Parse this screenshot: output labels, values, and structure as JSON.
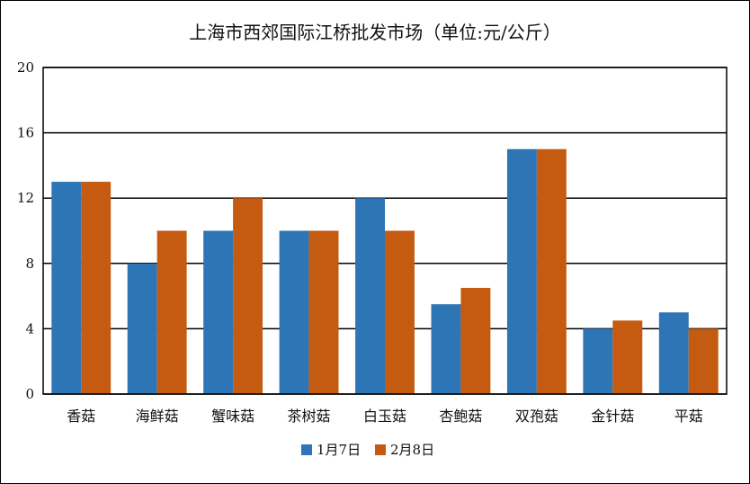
{
  "chart_data": {
    "type": "bar",
    "title": "上海市西郊国际江桥批发市场（单位:元/公斤）",
    "xlabel": "",
    "ylabel": "",
    "categories": [
      "香菇",
      "海鲜菇",
      "蟹味菇",
      "茶树菇",
      "白玉菇",
      "杏鲍菇",
      "双孢菇",
      "金针菇",
      "平菇"
    ],
    "series": [
      {
        "name": "1月7日",
        "color": "#2e75b6",
        "values": [
          13,
          8,
          10,
          10,
          12,
          5.5,
          15,
          4,
          5
        ]
      },
      {
        "name": "2月8日",
        "color": "#c55a11",
        "values": [
          13,
          10,
          12,
          10,
          10,
          6.5,
          15,
          4.5,
          4
        ]
      }
    ],
    "ylim": [
      0,
      20
    ],
    "yticks": [
      0,
      4,
      8,
      12,
      16,
      20
    ],
    "grid": true,
    "legend_position": "bottom"
  }
}
